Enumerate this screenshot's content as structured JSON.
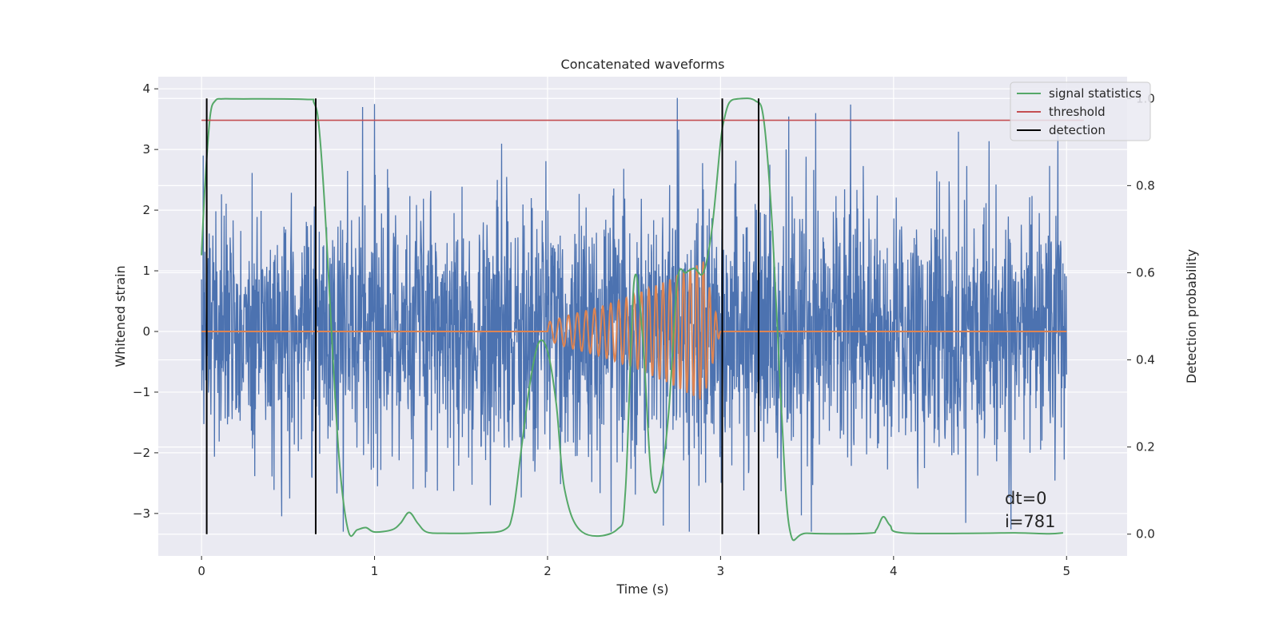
{
  "chart_data": {
    "type": "line",
    "title": "Concatenated waveforms",
    "xlabel": "Time (s)",
    "ylabel": "Whitened strain",
    "y2label": "Detection probability",
    "xlim": [
      -0.25,
      5.35
    ],
    "ylim": [
      -3.7,
      4.2
    ],
    "y2lim": [
      -0.05,
      1.05
    ],
    "xticks": [
      0,
      1,
      2,
      3,
      4,
      5
    ],
    "xtick_labels": [
      "0",
      "1",
      "2",
      "3",
      "4",
      "5"
    ],
    "yticks": [
      -3,
      -2,
      -1,
      0,
      1,
      2,
      3,
      4
    ],
    "ytick_labels": [
      "−3",
      "−2",
      "−1",
      "0",
      "1",
      "2",
      "3",
      "4"
    ],
    "y2ticks": [
      0.0,
      0.2,
      0.4,
      0.6,
      0.8,
      1.0
    ],
    "y2tick_labels": [
      "0.0",
      "0.2",
      "0.4",
      "0.6",
      "0.8",
      "1.0"
    ],
    "grid": true,
    "legend_position": "top-right",
    "colors": {
      "strain": "#4c72b0",
      "injection": "#dd8452",
      "signal": "#55a868",
      "threshold": "#c44e52",
      "detection": "#000000",
      "background": "#eaeaf2",
      "grid": "#ffffff"
    },
    "series": [
      {
        "name": "whitened strain (noise)",
        "axis": "left",
        "x_range": [
          0,
          5
        ],
        "envelope": "noise spanning roughly -3.3 to 3.9",
        "peaks": [
          [
            0.01,
            2.9
          ],
          [
            0.93,
            3.7
          ],
          [
            1.0,
            3.75
          ],
          [
            2.75,
            3.85
          ],
          [
            3.55,
            3.6
          ],
          [
            4.95,
            3.3
          ],
          [
            0.82,
            -3.3
          ],
          [
            2.67,
            -3.2
          ],
          [
            2.82,
            -3.3
          ]
        ]
      },
      {
        "name": "injected chirp",
        "axis": "left",
        "x": [
          0,
          2.0,
          2.1,
          2.3,
          2.5,
          2.7,
          2.9,
          3.0,
          5.0
        ],
        "amplitude": [
          0,
          0.15,
          0.25,
          0.4,
          0.6,
          0.85,
          1.15,
          0,
          0
        ]
      },
      {
        "name": "signal statistics",
        "axis": "right",
        "x": [
          0.0,
          0.02,
          0.05,
          0.08,
          0.12,
          0.2,
          0.6,
          0.65,
          0.68,
          0.72,
          0.76,
          0.8,
          0.85,
          0.9,
          0.95,
          1.0,
          1.1,
          1.15,
          1.2,
          1.25,
          1.3,
          1.4,
          1.6,
          1.75,
          1.8,
          1.85,
          1.9,
          1.95,
          2.0,
          2.05,
          2.1,
          2.2,
          2.4,
          2.45,
          2.5,
          2.55,
          2.6,
          2.65,
          2.7,
          2.75,
          2.8,
          2.85,
          2.9,
          2.95,
          3.0,
          3.02,
          3.05,
          3.1,
          3.2,
          3.25,
          3.3,
          3.35,
          3.4,
          3.5,
          3.85,
          3.9,
          3.94,
          3.98,
          4.05,
          4.5,
          4.7,
          4.9,
          4.98
        ],
        "y": [
          0.64,
          0.8,
          0.96,
          0.995,
          0.999,
          0.999,
          0.998,
          0.99,
          0.93,
          0.7,
          0.4,
          0.15,
          0.005,
          0.01,
          0.015,
          0.005,
          0.01,
          0.025,
          0.05,
          0.025,
          0.005,
          0.002,
          0.003,
          0.01,
          0.05,
          0.2,
          0.35,
          0.44,
          0.42,
          0.3,
          0.1,
          0.005,
          0.01,
          0.1,
          0.58,
          0.45,
          0.13,
          0.12,
          0.28,
          0.58,
          0.6,
          0.61,
          0.6,
          0.7,
          0.9,
          0.95,
          0.99,
          0.999,
          0.995,
          0.95,
          0.7,
          0.3,
          0.01,
          0.002,
          0.002,
          0.01,
          0.04,
          0.02,
          0.003,
          0.002,
          0.003,
          0.001,
          0.003
        ]
      },
      {
        "name": "threshold",
        "axis": "right",
        "x": [
          0,
          5.1
        ],
        "y": [
          0.95,
          0.95
        ]
      },
      {
        "name": "detection",
        "axis": "right",
        "type": "vlines",
        "x": [
          0.03,
          0.66,
          3.01,
          3.22
        ],
        "ymin": 0.0,
        "ymax": 1.0
      }
    ],
    "legend": [
      "signal statistics",
      "threshold",
      "detection"
    ],
    "annotations": [
      "dt=0",
      "i=781"
    ]
  }
}
